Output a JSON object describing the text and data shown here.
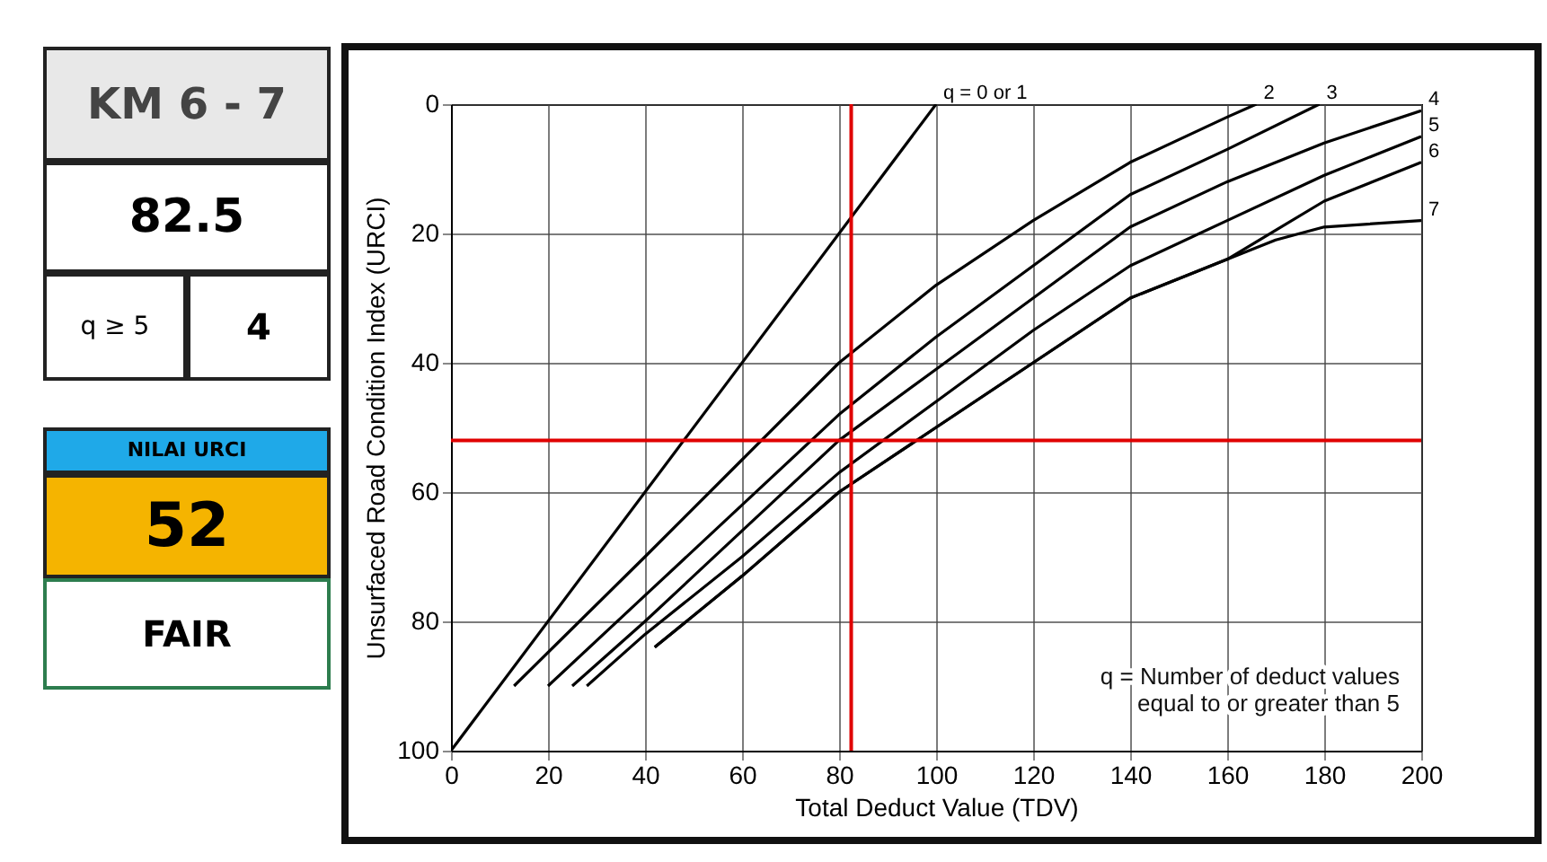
{
  "chart_data": [
    {
      "type": "other",
      "annotations": [
        "KM 6 - 7",
        "82.5",
        "q ≥ 5",
        "4",
        "NILAI URCI",
        "52",
        "FAIR"
      ]
    },
    {
      "type": "line",
      "xlabel": "Total Deduct Value (TDV)",
      "ylabel": "Unsurfaced Road Condition Index (URCI)",
      "xlim": [
        0,
        200
      ],
      "ylim": [
        100,
        0
      ],
      "xticks": [
        0,
        20,
        40,
        60,
        80,
        100,
        120,
        140,
        160,
        180,
        200
      ],
      "yticks": [
        0,
        20,
        40,
        60,
        80,
        100
      ],
      "grid": true,
      "series": [
        {
          "name": "q = 0 or 1",
          "color": "#000000",
          "x": [
            0,
            100
          ],
          "values": [
            100,
            0
          ]
        },
        {
          "name": "2",
          "color": "#000000",
          "x": [
            13,
            40,
            60,
            80,
            100,
            120,
            140,
            160,
            166
          ],
          "values": [
            90,
            70,
            55,
            40,
            28,
            18,
            9,
            2,
            0
          ]
        },
        {
          "name": "3",
          "color": "#000000",
          "x": [
            20,
            40,
            60,
            80,
            100,
            120,
            140,
            160,
            179
          ],
          "values": [
            90,
            76,
            62,
            48,
            36,
            25,
            14,
            7,
            0
          ]
        },
        {
          "name": "4",
          "color": "#000000",
          "x": [
            25,
            40,
            60,
            80,
            100,
            120,
            140,
            160,
            180,
            200
          ],
          "values": [
            90,
            80,
            66,
            52,
            41,
            30,
            19,
            12,
            6,
            1
          ]
        },
        {
          "name": "5",
          "color": "#000000",
          "x": [
            28,
            40,
            60,
            80,
            100,
            120,
            140,
            160,
            180,
            200
          ],
          "values": [
            90,
            82,
            70,
            57,
            46,
            35,
            25,
            18,
            11,
            5
          ]
        },
        {
          "name": "6",
          "color": "#000000",
          "x": [
            42,
            60,
            80,
            100,
            120,
            140,
            160,
            180,
            200
          ],
          "values": [
            84,
            73,
            60,
            50,
            40,
            30,
            24,
            15,
            9
          ]
        },
        {
          "name": "7",
          "color": "#000000",
          "x": [
            42,
            60,
            80,
            100,
            120,
            140,
            160,
            170,
            180,
            200
          ],
          "values": [
            84,
            73,
            60,
            50,
            40,
            30,
            24,
            21,
            19,
            18
          ]
        }
      ],
      "ref_lines": [
        {
          "axis": "x",
          "value": 82.5,
          "color": "#e00000"
        },
        {
          "axis": "y",
          "value": 52,
          "color": "#e00000"
        }
      ],
      "annotations": [
        "q = Number of deduct  values\nequal to or greater than 5"
      ]
    }
  ]
}
